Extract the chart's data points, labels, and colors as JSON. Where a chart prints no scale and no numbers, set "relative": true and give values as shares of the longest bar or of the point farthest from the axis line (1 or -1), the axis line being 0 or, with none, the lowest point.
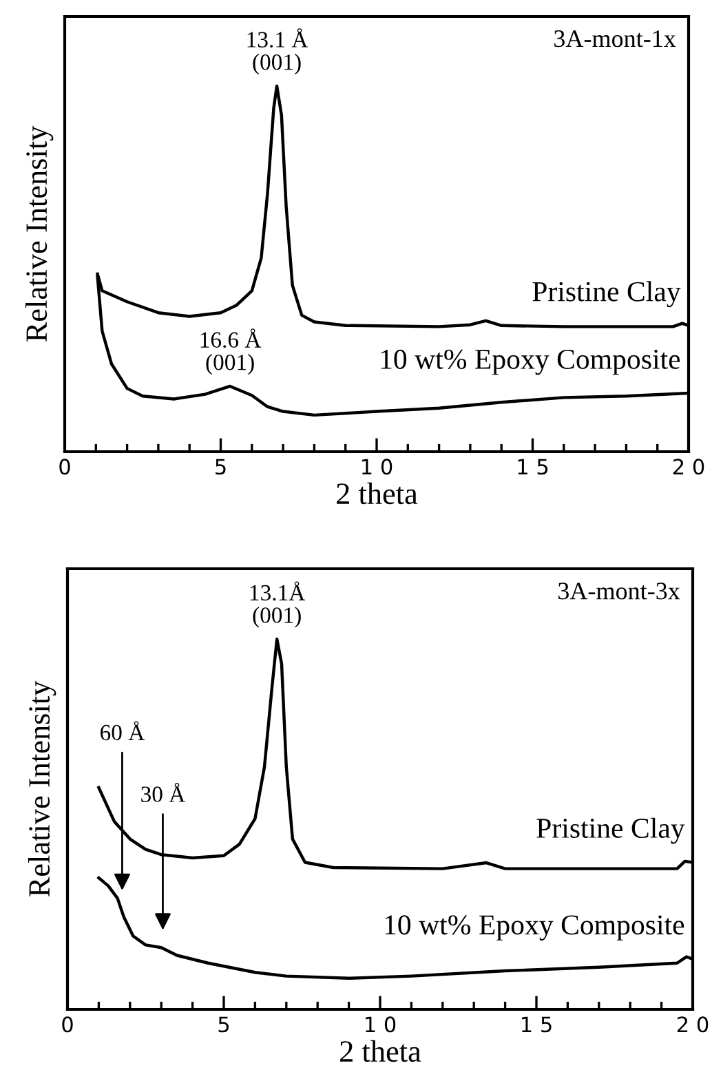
{
  "chart_data": [
    {
      "type": "line",
      "relative": true,
      "xlabel": "2 theta",
      "ylabel": "Relative Intensity",
      "xlim": [
        0,
        20
      ],
      "xticks": [
        0,
        5,
        {
          "value": 10,
          "label": "1 0"
        },
        {
          "value": 15,
          "label": "1 5"
        },
        {
          "value": 20,
          "label": "2 0"
        }
      ],
      "tick_labels": "x",
      "legend": false,
      "grid": false,
      "annotations": [
        "3A-mont-1x",
        {
          "text": "13.1 Å\n(001)",
          "x": 6.8,
          "y": 1
        },
        {
          "text": "16.6 Å\n(001)",
          "x": 5.3,
          "y": 0.179
        }
      ],
      "series": [
        {
          "name": "Pristine Clay",
          "color": "#000000",
          "x": [
            1.05,
            1.2,
            2,
            3,
            4,
            5,
            5.5,
            6,
            6.3,
            6.5,
            6.7,
            6.8,
            6.95,
            7.1,
            7.3,
            7.6,
            8,
            9,
            12,
            13,
            13.5,
            14,
            16,
            19.5,
            19.8,
            20
          ],
          "values": [
            0.486,
            0.44,
            0.41,
            0.38,
            0.37,
            0.38,
            0.4,
            0.44,
            0.53,
            0.705,
            0.94,
            1,
            0.92,
            0.67,
            0.455,
            0.373,
            0.355,
            0.345,
            0.342,
            0.347,
            0.358,
            0.345,
            0.342,
            0.342,
            0.351,
            0.345
          ]
        },
        {
          "name": "10 wt% Epoxy Composite",
          "color": "#000000",
          "x": [
            1.05,
            1.2,
            1.5,
            2,
            2.5,
            3.5,
            4.5,
            5.3,
            6,
            6.5,
            7,
            8,
            10,
            12,
            14,
            16,
            18,
            20
          ],
          "values": [
            0.48,
            0.33,
            0.24,
            0.173,
            0.152,
            0.144,
            0.157,
            0.179,
            0.154,
            0.123,
            0.11,
            0.1,
            0.11,
            0.119,
            0.135,
            0.148,
            0.152,
            0.16
          ]
        }
      ]
    },
    {
      "type": "line",
      "relative": true,
      "xlabel": "2 theta",
      "ylabel": "Relative Intensity",
      "xlim": [
        0,
        20
      ],
      "xticks": [
        0,
        5,
        {
          "value": 10,
          "label": "1 0"
        },
        {
          "value": 15,
          "label": "1 5"
        },
        {
          "value": 20,
          "label": "2 0"
        }
      ],
      "tick_labels": "x",
      "legend": false,
      "grid": false,
      "annotations": [
        "3A-mont-3x",
        {
          "text": "13.1Å\n(001)",
          "x": 6.7,
          "y": 1
        },
        "60 Å",
        "30 Å"
      ],
      "series": [
        {
          "name": "Pristine Clay",
          "color": "#000000",
          "x": [
            1,
            1.5,
            2,
            2.5,
            3,
            4,
            5,
            5.5,
            6,
            6.3,
            6.55,
            6.7,
            6.85,
            7,
            7.2,
            7.6,
            8.5,
            12,
            13.4,
            14,
            19.5,
            19.75,
            20
          ],
          "values": [
            0.599,
            0.507,
            0.46,
            0.432,
            0.418,
            0.409,
            0.415,
            0.446,
            0.515,
            0.655,
            0.877,
            1,
            0.933,
            0.655,
            0.46,
            0.397,
            0.383,
            0.38,
            0.396,
            0.38,
            0.38,
            0.4,
            0.397
          ]
        },
        {
          "name": "10 wt% Epoxy Composite",
          "color": "#000000",
          "x": [
            1,
            1.3,
            1.6,
            1.8,
            2.1,
            2.5,
            3,
            3.5,
            4.5,
            6,
            7,
            9,
            11,
            14,
            17,
            19.5,
            19.8,
            20
          ],
          "values": [
            0.355,
            0.334,
            0.3,
            0.25,
            0.198,
            0.174,
            0.167,
            0.146,
            0.125,
            0.1,
            0.09,
            0.084,
            0.09,
            0.104,
            0.114,
            0.125,
            0.142,
            0.136
          ]
        }
      ]
    }
  ]
}
